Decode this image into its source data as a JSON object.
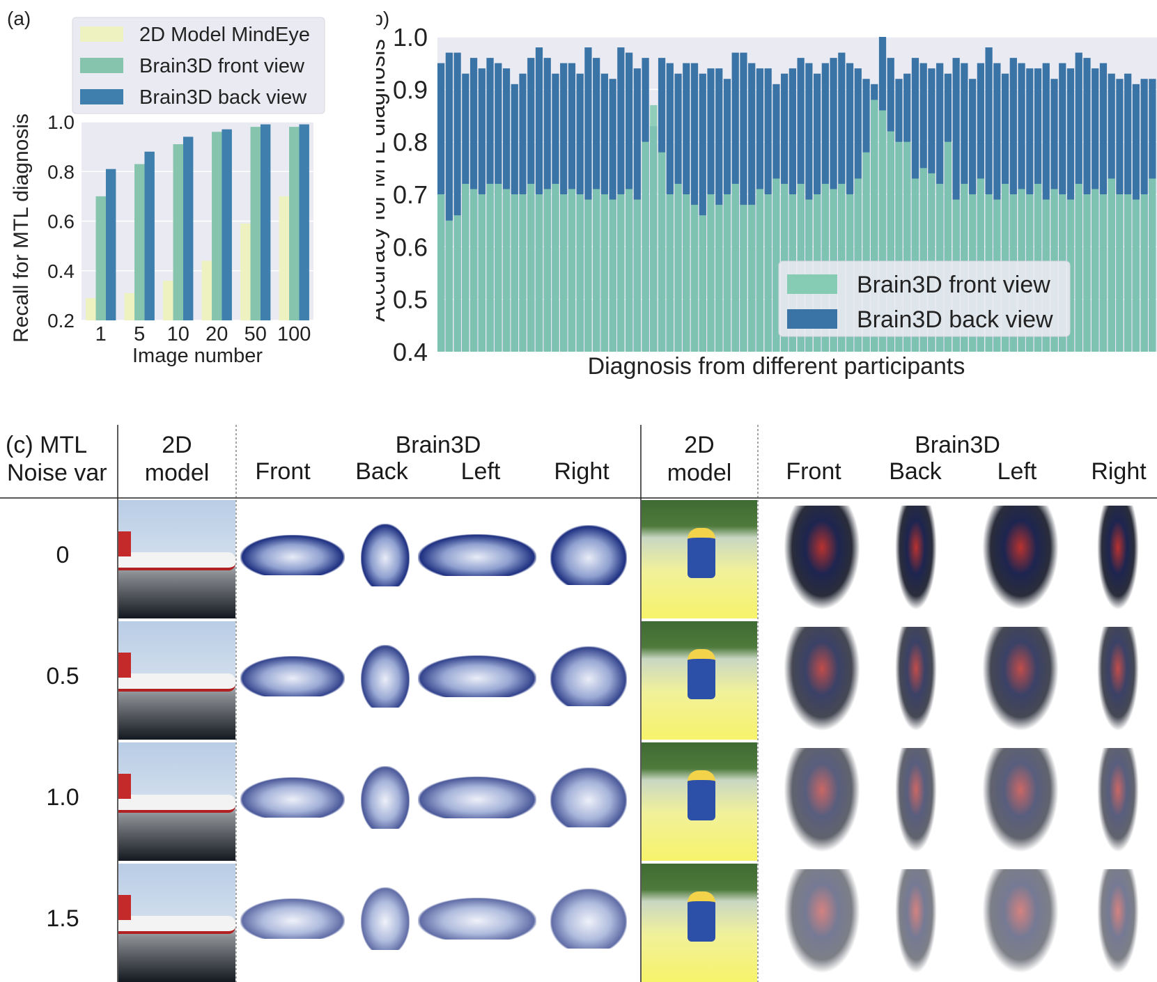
{
  "chart_data": [
    {
      "panel_label": "(a)",
      "type": "bar",
      "xlabel": "Image number",
      "ylabel": "Recall for MTL diagnosis",
      "categories": [
        "1",
        "5",
        "10",
        "20",
        "50",
        "100"
      ],
      "ylim": [
        0.2,
        1.0
      ],
      "yticks": [
        "0.2",
        "0.4",
        "0.6",
        "0.8",
        "1.0"
      ],
      "grid": true,
      "legend_position": "top",
      "series": [
        {
          "name": "2D Model MindEye",
          "color": "#edf2c0",
          "values": [
            0.29,
            0.31,
            0.36,
            0.44,
            0.59,
            0.7
          ]
        },
        {
          "name": "Brain3D front view",
          "color": "#86c4ae",
          "values": [
            0.7,
            0.83,
            0.91,
            0.96,
            0.98,
            0.98
          ]
        },
        {
          "name": "Brain3D back view",
          "color": "#3f7fae",
          "values": [
            0.81,
            0.88,
            0.94,
            0.97,
            0.99,
            0.99
          ]
        }
      ]
    },
    {
      "panel_label": "(b)",
      "type": "bar",
      "xlabel": "Diagnosis from different participants",
      "ylabel": "Accuracy for MTL diagnosis",
      "ylim": [
        0.4,
        1.0
      ],
      "yticks": [
        "0.4",
        "0.5",
        "0.6",
        "0.7",
        "0.8",
        "0.9",
        "1.0"
      ],
      "grid": true,
      "legend_position": "bottom-right",
      "series": [
        {
          "name": "Brain3D front view",
          "color": "#86cbb3",
          "values": [
            0.7,
            0.65,
            0.66,
            0.72,
            0.71,
            0.7,
            0.72,
            0.72,
            0.71,
            0.7,
            0.7,
            0.72,
            0.7,
            0.71,
            0.72,
            0.7,
            0.71,
            0.7,
            0.69,
            0.71,
            0.7,
            0.69,
            0.7,
            0.71,
            0.69,
            0.8,
            0.87,
            0.78,
            0.7,
            0.72,
            0.7,
            0.68,
            0.66,
            0.7,
            0.68,
            0.7,
            0.72,
            0.68,
            0.68,
            0.71,
            0.7,
            0.73,
            0.72,
            0.7,
            0.72,
            0.69,
            0.7,
            0.72,
            0.71,
            0.72,
            0.7,
            0.73,
            0.78,
            0.88,
            0.86,
            0.82,
            0.8,
            0.8,
            0.73,
            0.75,
            0.74,
            0.72,
            0.8,
            0.69,
            0.72,
            0.7,
            0.73,
            0.7,
            0.69,
            0.72,
            0.7,
            0.71,
            0.7,
            0.72,
            0.69,
            0.71,
            0.7,
            0.69,
            0.72,
            0.7,
            0.71,
            0.7,
            0.73,
            0.7,
            0.7,
            0.69,
            0.7,
            0.73
          ]
        },
        {
          "name": "Brain3D back view",
          "color": "#3a73a6",
          "values": [
            0.95,
            0.97,
            0.97,
            0.93,
            0.96,
            0.94,
            0.96,
            0.95,
            0.94,
            0.91,
            0.93,
            0.96,
            0.98,
            0.96,
            0.93,
            0.95,
            0.95,
            0.93,
            0.98,
            0.96,
            0.93,
            0.92,
            0.98,
            0.97,
            0.94,
            0.96,
            0.83,
            0.96,
            0.95,
            0.93,
            0.95,
            0.95,
            0.93,
            0.94,
            0.94,
            0.92,
            0.97,
            0.97,
            0.95,
            0.94,
            0.94,
            0.91,
            0.93,
            0.94,
            0.96,
            0.95,
            0.93,
            0.95,
            0.96,
            0.97,
            0.95,
            0.94,
            0.92,
            0.91,
            1.0,
            0.96,
            0.92,
            0.93,
            0.96,
            0.95,
            0.94,
            0.95,
            0.93,
            0.96,
            0.95,
            0.92,
            0.95,
            0.98,
            0.95,
            0.93,
            0.96,
            0.95,
            0.94,
            0.94,
            0.95,
            0.92,
            0.95,
            0.94,
            0.97,
            0.96,
            0.94,
            0.95,
            0.93,
            0.92,
            0.93,
            0.91,
            0.92,
            0.92
          ]
        }
      ]
    }
  ],
  "panel_c": {
    "label": "(c)",
    "row_header": [
      "MTL",
      "Noise var"
    ],
    "col_2d": [
      "2D",
      "model"
    ],
    "group_label": "Brain3D",
    "views": [
      "Front",
      "Back",
      "Left",
      "Right"
    ],
    "noise_levels": [
      "0",
      "0.5",
      "1.0",
      "1.5"
    ]
  }
}
